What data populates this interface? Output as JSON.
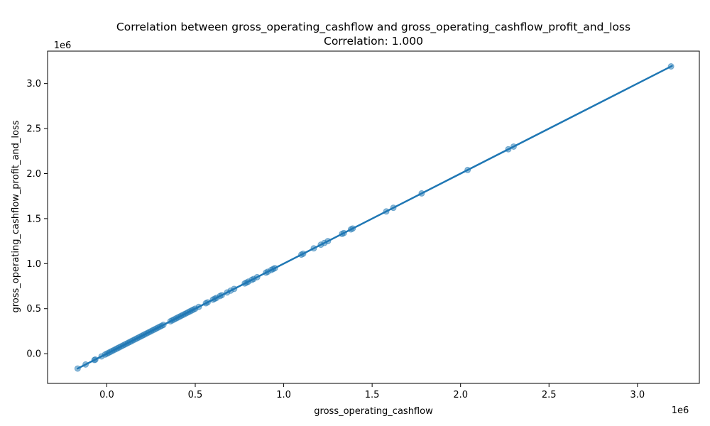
{
  "chart_data": {
    "type": "scatter",
    "title": "Correlation between gross_operating_cashflow and gross_operating_cashflow_profit_and_loss",
    "subtitle": "Correlation: 1.000",
    "xlabel": "gross_operating_cashflow",
    "ylabel": "gross_operating_cashflow_profit_and_loss",
    "x_offset_label": "1e6",
    "y_offset_label": "1e6",
    "xlim": [
      -0.335,
      3.35
    ],
    "ylim": [
      -0.33,
      3.36
    ],
    "x_ticks": [
      0.0,
      0.5,
      1.0,
      1.5,
      2.0,
      2.5,
      3.0
    ],
    "x_tick_labels": [
      "0.0",
      "0.5",
      "1.0",
      "1.5",
      "2.0",
      "2.5",
      "3.0"
    ],
    "y_ticks": [
      0.0,
      0.5,
      1.0,
      1.5,
      2.0,
      2.5,
      3.0
    ],
    "y_tick_labels": [
      "0.0",
      "0.5",
      "1.0",
      "1.5",
      "2.0",
      "2.5",
      "3.0"
    ],
    "grid": false,
    "point_color": "#1f77b4",
    "point_alpha": 0.5,
    "line_color": "#1f77b4",
    "regression_line": {
      "x": [
        -0.165,
        3.195
      ],
      "y": [
        -0.165,
        3.195
      ]
    },
    "points": {
      "x": [
        -0.165,
        -0.12,
        -0.07,
        -0.065,
        -0.03,
        -0.01,
        0.0,
        0.01,
        0.02,
        0.03,
        0.04,
        0.05,
        0.06,
        0.07,
        0.08,
        0.09,
        0.1,
        0.11,
        0.12,
        0.13,
        0.14,
        0.15,
        0.16,
        0.17,
        0.18,
        0.19,
        0.2,
        0.21,
        0.22,
        0.23,
        0.24,
        0.25,
        0.26,
        0.27,
        0.28,
        0.29,
        0.3,
        0.31,
        0.32,
        0.36,
        0.37,
        0.38,
        0.39,
        0.4,
        0.41,
        0.42,
        0.43,
        0.44,
        0.45,
        0.46,
        0.47,
        0.48,
        0.49,
        0.5,
        0.52,
        0.56,
        0.57,
        0.6,
        0.61,
        0.62,
        0.64,
        0.65,
        0.68,
        0.7,
        0.72,
        0.78,
        0.79,
        0.8,
        0.82,
        0.83,
        0.85,
        0.9,
        0.91,
        0.93,
        0.94,
        0.95,
        1.1,
        1.11,
        1.17,
        1.21,
        1.23,
        1.25,
        1.33,
        1.34,
        1.38,
        1.39,
        1.58,
        1.62,
        1.78,
        2.04,
        2.27,
        2.3,
        3.19
      ],
      "y": [
        -0.165,
        -0.12,
        -0.07,
        -0.065,
        -0.03,
        -0.01,
        0.0,
        0.01,
        0.02,
        0.03,
        0.04,
        0.05,
        0.06,
        0.07,
        0.08,
        0.09,
        0.1,
        0.11,
        0.12,
        0.13,
        0.14,
        0.15,
        0.16,
        0.17,
        0.18,
        0.19,
        0.2,
        0.21,
        0.22,
        0.23,
        0.24,
        0.25,
        0.26,
        0.27,
        0.28,
        0.29,
        0.3,
        0.31,
        0.32,
        0.36,
        0.37,
        0.38,
        0.39,
        0.4,
        0.41,
        0.42,
        0.43,
        0.44,
        0.45,
        0.46,
        0.47,
        0.48,
        0.49,
        0.5,
        0.52,
        0.56,
        0.57,
        0.6,
        0.61,
        0.62,
        0.64,
        0.65,
        0.68,
        0.7,
        0.72,
        0.78,
        0.79,
        0.8,
        0.82,
        0.83,
        0.85,
        0.9,
        0.91,
        0.93,
        0.94,
        0.95,
        1.1,
        1.11,
        1.17,
        1.21,
        1.23,
        1.25,
        1.33,
        1.34,
        1.38,
        1.39,
        1.58,
        1.62,
        1.78,
        2.04,
        2.27,
        2.3,
        3.19
      ]
    }
  }
}
